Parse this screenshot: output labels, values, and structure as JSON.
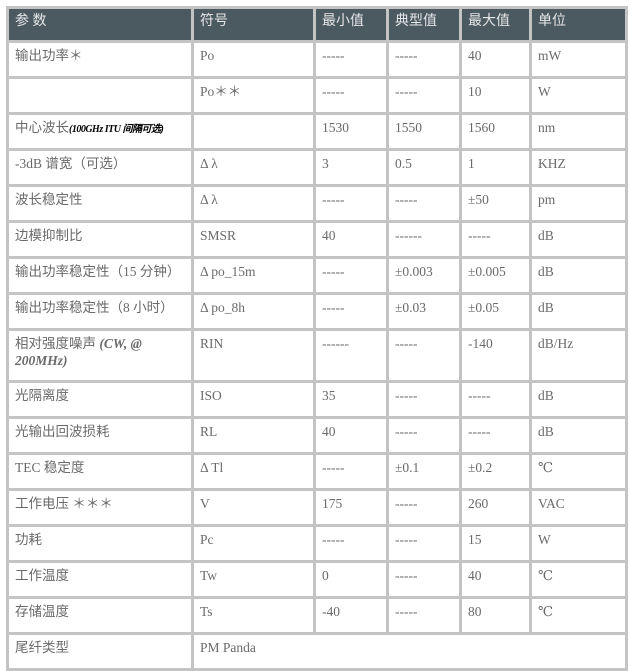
{
  "headers": [
    "参 数",
    "符号",
    "最小值",
    "典型值",
    "最大值",
    "单位"
  ],
  "rows": [
    {
      "param": "输出功率＊",
      "symbol": "Po",
      "min": "-----",
      "typ": "-----",
      "max": "40",
      "unit": "mW"
    },
    {
      "param": "",
      "symbol": "Po＊＊",
      "min": "-----",
      "typ": "-----",
      "max": "10",
      "unit": "W"
    },
    {
      "param": "中心波长",
      "note": "(100GHz ITU 间隔可选)",
      "symbol": "",
      "min": "1530",
      "typ": "1550",
      "max": "1560",
      "unit": "nm"
    },
    {
      "param": "-3dB 谱宽（可选）",
      "symbol": "Δ λ",
      "min": "3",
      "typ": "0.5",
      "max": "1",
      "unit": "KHZ"
    },
    {
      "param": "波长稳定性",
      "symbol": "Δ λ",
      "min": "-----",
      "typ": "-----",
      "max": "±50",
      "unit": "pm"
    },
    {
      "param": "边模抑制比",
      "symbol": "SMSR",
      "min": "40",
      "typ": "------",
      "max": "-----",
      "unit": "dB"
    },
    {
      "param": "输出功率稳定性（15 分钟）",
      "symbol": "Δ po_15m",
      "min": "-----",
      "typ": "±0.003",
      "max": "±0.005",
      "unit": "dB"
    },
    {
      "param": "输出功率稳定性（8 小时）",
      "symbol": "Δ po_8h",
      "min": "-----",
      "typ": "±0.03",
      "max": "±0.05",
      "unit": "dB"
    },
    {
      "param": "相对强度噪声",
      "note": "(CW, @ 200MHz)",
      "symbol": "RIN",
      "min": "------",
      "typ": "-----",
      "max": "-140",
      "unit": "dB/Hz"
    },
    {
      "param": "光隔离度",
      "symbol": "ISO",
      "min": "35",
      "typ": "-----",
      "max": "-----",
      "unit": "dB"
    },
    {
      "param": "光输出回波损耗",
      "symbol": "RL",
      "min": "40",
      "typ": "-----",
      "max": "-----",
      "unit": "dB"
    },
    {
      "param": "TEC 稳定度",
      "symbol": "Δ Tl",
      "min": "-----",
      "typ": "±0.1",
      "max": "±0.2",
      "unit": "℃"
    },
    {
      "param": "工作电压 ＊＊＊",
      "symbol": "V",
      "min": "175",
      "typ": "-----",
      "max": "260",
      "unit": "VAC"
    },
    {
      "param": "功耗",
      "symbol": "Pc",
      "min": "-----",
      "typ": "-----",
      "max": "15",
      "unit": "W"
    },
    {
      "param": "工作温度",
      "symbol": "Tw",
      "min": "0",
      "typ": "-----",
      "max": "40",
      "unit": "℃"
    },
    {
      "param": "存储温度",
      "symbol": "Ts",
      "min": "-40",
      "typ": "-----",
      "max": "80",
      "unit": "℃"
    }
  ],
  "last_row": {
    "param": "尾纤类型",
    "value": "PM Panda"
  }
}
